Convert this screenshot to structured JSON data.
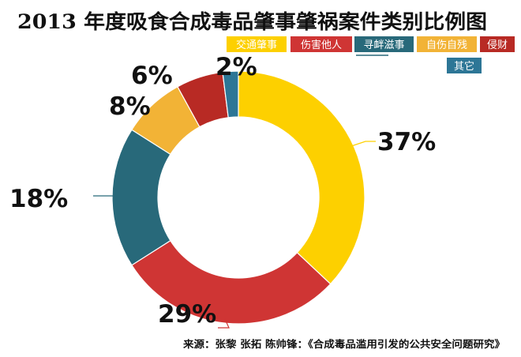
{
  "chart_data": {
    "type": "pie",
    "title": "2013 年度吸食合成毒品肇事肇祸案件类别比例图",
    "categories": [
      "交通肇事",
      "伤害他人",
      "寻衅滋事",
      "自伤自残",
      "侵财",
      "其它"
    ],
    "values": [
      37,
      29,
      18,
      8,
      6,
      2
    ],
    "value_labels": [
      "37%",
      "29%",
      "18%",
      "8%",
      "6%",
      "2%"
    ],
    "colors": [
      "#fdd000",
      "#cf3534",
      "#28697a",
      "#f2b336",
      "#b82a24",
      "#2d7696"
    ],
    "legend_placement": "top-right",
    "source": "来源：张黎 张拓 陈帅锋：《合成毒品滥用引发的公共安全问题研究》"
  }
}
